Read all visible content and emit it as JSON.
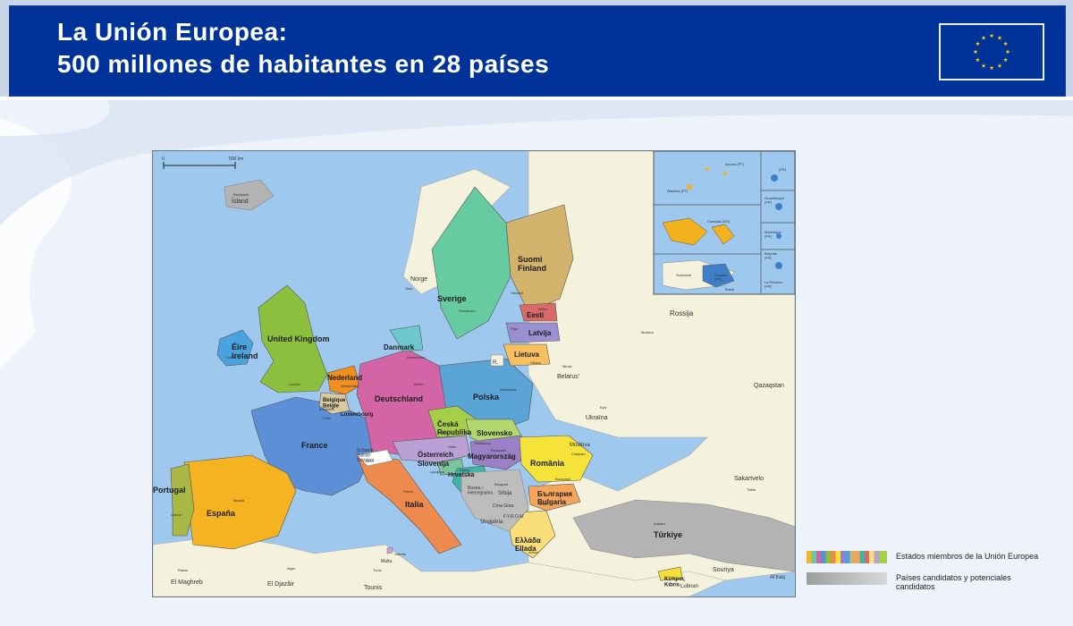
{
  "header": {
    "title_line1": "La Unión Europea:",
    "title_line2": "500 millones de habitantes en 28 países"
  },
  "colors": {
    "header_blue": "#003399",
    "eu_flag_blue": "#003399",
    "eu_star_yellow": "#ffcc00",
    "sea": "#9ec8ee",
    "non_eu_land": "#f4f2dc",
    "candidate_grey": "#b3b3b3"
  },
  "icons": {
    "flag": "eu-flag-icon"
  },
  "map": {
    "scale_zero": "0",
    "scale_label": "500 km",
    "eu_members": {
      "ireland": "Éire\nIreland",
      "uk": "United Kingdom",
      "netherlands": "Nederland",
      "belgium": "Belgique\nBelgïe",
      "luxembourg": "Luxembourg",
      "germany": "Deutschland",
      "denmark": "Danmark",
      "france": "France",
      "spain": "España",
      "portugal": "Portugal",
      "italy": "Italia",
      "malta": "Malta",
      "austria": "Österreich",
      "slovenia": "Slovenija",
      "croatia": "Hrvatska",
      "czech": "Česká\nRepublika",
      "slovakia": "Slovensko",
      "hungary": "Magyarország",
      "poland": "Polska",
      "sweden": "Sverige",
      "finland": "Suomi\nFinland",
      "estonia": "Eesti",
      "latvia": "Latvija",
      "lithuania": "Lietuva",
      "romania": "România",
      "bulgaria": "България\nBulgaria",
      "greece": "Ελλάδα\nEllada",
      "cyprus": "Κύπρος\nKıbrıs"
    },
    "other_countries": {
      "iceland": "Ísland",
      "norway": "Norge",
      "russia": "Rossija",
      "belarus": "Belarus'",
      "ukraine": "Ukraïna",
      "moldova": "Moldova",
      "kazakhstan": "Qazaqstan",
      "sakartvelo": "Sakartvelo",
      "turkey": "Türkiye",
      "suriya": "Souriya",
      "lubnan": "Lubnan",
      "iraq": "Al'Iraq",
      "maghreb": "El Maghreb",
      "djazair": "El Djazâir",
      "tounis": "Tounis",
      "srbija": "Srbija",
      "shqiperia": "Shqipëria",
      "swiss": "Schweiz\nSuisse\nSvizzera",
      "mne": "Crna Gora",
      "bih": "Bosna i\nHercegovina",
      "fyrom": "F.Y.R.O.M",
      "rossija_kal": "R."
    },
    "inset_labels": {
      "azores": "Açores (PT)",
      "madeira": "Madeira (PT)",
      "canarias": "Canarias (ES)",
      "guadeloupe": "Guadeloupe\n(FR)",
      "martinique": "Martinique\n(FR)",
      "mayotte": "Mayotte\n(FR)",
      "reunion": "La Réunion\n(FR)",
      "guyane": "Guyane\n(FR)",
      "suriname": "Suriname",
      "brasil": "Brasil",
      "fr_small": "(FR)"
    },
    "capitals": {
      "reykjavik": "Reykjavik",
      "oslo": "Oslo",
      "stockholm": "Stockholm",
      "helsinki": "Helsinki",
      "tallinn": "Tallinn",
      "riga": "Riga",
      "vilnius": "Vilnius",
      "minsk": "Minsk",
      "moskva": "Moskva",
      "kyiv": "Kyiv",
      "dublin": "Dublin",
      "london": "London",
      "paris": "Paris",
      "madrid": "Madrid",
      "lisboa": "Lisboa",
      "roma": "Roma",
      "berlin": "Berlin",
      "warszawa": "Warszawa",
      "praha": "Praha",
      "wien": "Wien",
      "bratislava": "Bratislava",
      "budapest": "Budapest",
      "bucuresti": "București",
      "sofia": "Sofia",
      "athina": "Athina",
      "ankara": "Ankara",
      "beograd": "Beograd",
      "kobenhavn": "København",
      "amsterdam": "Amsterdam",
      "bruxelles": "Bruxelles",
      "bern": "Bern",
      "valletta": "Valletta",
      "tunis": "Tunis",
      "alger": "Alger",
      "rabat": "Rabat",
      "tbilisi": "Tbilisi",
      "chisinau": "Chişinău",
      "zagreb": "Zagreb",
      "ljubljana": "Ljubljana"
    }
  },
  "legend": {
    "eu_members": "Estados miembros de la Unión Europea",
    "candidates_line1": "Países candidatos y potenciales",
    "candidates_line2": "candidatos"
  }
}
